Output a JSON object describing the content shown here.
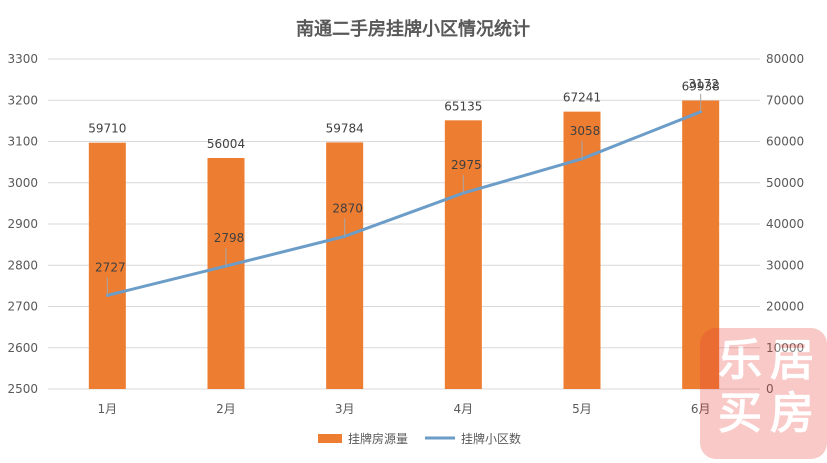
{
  "chart_data": {
    "type": "bar",
    "title": "南通二手房挂牌小区情况统计",
    "categories": [
      "1月",
      "2月",
      "3月",
      "4月",
      "5月",
      "6月"
    ],
    "y_left": {
      "ticks": [
        2500,
        2600,
        2700,
        2800,
        2900,
        3000,
        3100,
        3200,
        3300
      ],
      "min": 2500,
      "max": 3300
    },
    "y_right": {
      "ticks": [
        0,
        10000,
        20000,
        30000,
        40000,
        50000,
        60000,
        70000,
        80000
      ],
      "min": 0,
      "max": 80000
    },
    "grid": true,
    "legend_position": "bottom",
    "series": [
      {
        "name": "挂牌房源量",
        "type": "bar",
        "axis": "right",
        "color": "#ED7D31",
        "values": [
          59710,
          56004,
          59784,
          65135,
          67241,
          69938
        ]
      },
      {
        "name": "挂牌小区数",
        "type": "line",
        "axis": "left",
        "color": "#6B9DC8",
        "values": [
          2727,
          2798,
          2870,
          2975,
          3058,
          3172
        ]
      }
    ]
  },
  "watermark": {
    "text": "乐居买房",
    "color": "#E8413A"
  }
}
